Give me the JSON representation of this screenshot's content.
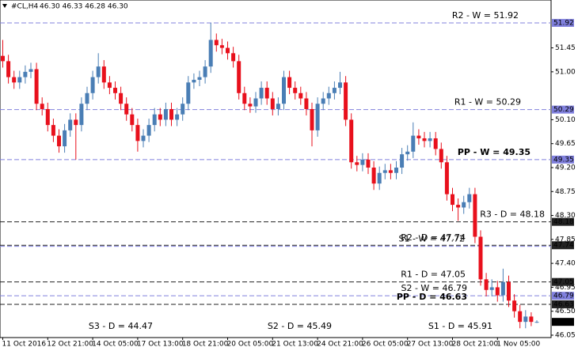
{
  "chart_data": {
    "type": "candlestick",
    "symbol": "#CL,H4",
    "ohlc": "46.30 46.33 46.28 46.30",
    "up_color": "#4a7eb5",
    "down_color": "#e8101c",
    "ylim": [
      46.02,
      52.35
    ],
    "yticks": [
      {
        "value": 51.45,
        "label": "51.45"
      },
      {
        "value": 51.0,
        "label": "51.00"
      },
      {
        "value": 50.1,
        "label": "50.10"
      },
      {
        "value": 49.65,
        "label": "49.65"
      },
      {
        "value": 49.2,
        "label": "49.20"
      },
      {
        "value": 48.75,
        "label": "48.75"
      },
      {
        "value": 48.3,
        "label": "48.30"
      },
      {
        "value": 47.85,
        "label": "47.85"
      },
      {
        "value": 47.4,
        "label": "47.40"
      },
      {
        "value": 46.95,
        "label": "46.95"
      },
      {
        "value": 46.5,
        "label": "46.50"
      },
      {
        "value": 46.05,
        "label": "46.05"
      }
    ],
    "last": {
      "value": 46.3,
      "label": "46.30"
    },
    "categories": [
      "11 Oct 2016",
      null,
      null,
      null,
      null,
      null,
      null,
      null,
      "12 Oct 21:00",
      null,
      null,
      null,
      null,
      null,
      null,
      null,
      "14 Oct 05:00",
      null,
      null,
      null,
      null,
      null,
      null,
      null,
      "17 Oct 13:00",
      null,
      null,
      null,
      null,
      null,
      null,
      null,
      "18 Oct 21:00",
      null,
      null,
      null,
      null,
      null,
      null,
      null,
      "20 Oct 05:00",
      null,
      null,
      null,
      null,
      null,
      null,
      null,
      "21 Oct 13:00",
      null,
      null,
      null,
      null,
      null,
      null,
      null,
      "24 Oct 21:00",
      null,
      null,
      null,
      null,
      null,
      null,
      null,
      "26 Oct 05:00",
      null,
      null,
      null,
      null,
      null,
      null,
      null,
      "27 Oct 13:00",
      null,
      null,
      null,
      null,
      null,
      null,
      null,
      "28 Oct 21:00",
      null,
      null,
      null,
      null,
      null,
      null,
      null,
      "1 Nov 05:00",
      null,
      null,
      null,
      null,
      null,
      null,
      null
    ],
    "open": [
      51.3,
      51.2,
      50.9,
      50.8,
      50.9,
      51.0,
      51.05,
      50.4,
      50.3,
      50.0,
      49.8,
      49.6,
      49.9,
      50.1,
      50.0,
      50.4,
      50.6,
      50.9,
      51.1,
      50.8,
      50.7,
      50.6,
      50.4,
      50.2,
      50.0,
      49.7,
      49.8,
      50.0,
      50.2,
      50.1,
      50.3,
      50.1,
      50.2,
      50.4,
      50.8,
      50.85,
      50.9,
      51.1,
      51.6,
      51.5,
      51.45,
      51.35,
      51.2,
      50.6,
      50.4,
      50.35,
      50.5,
      50.7,
      50.5,
      50.3,
      50.4,
      50.9,
      50.7,
      50.6,
      50.5,
      50.3,
      49.9,
      50.4,
      50.5,
      50.6,
      50.7,
      50.8,
      50.1,
      49.3,
      49.25,
      49.35,
      49.2,
      48.9,
      49.1,
      49.15,
      49.1,
      49.2,
      49.45,
      49.5,
      49.8,
      49.75,
      49.7,
      49.75,
      49.55,
      49.3,
      48.7,
      48.5,
      48.45,
      48.55,
      48.7,
      47.9,
      47.1,
      46.9,
      46.95,
      46.8,
      47.05,
      46.7,
      46.5,
      46.3,
      46.4,
      46.3
    ],
    "high": [
      51.6,
      51.32,
      51.02,
      51.02,
      51.12,
      51.17,
      51.17,
      50.52,
      50.42,
      50.12,
      49.92,
      50.02,
      50.22,
      50.22,
      50.52,
      50.72,
      51.02,
      51.35,
      51.22,
      50.92,
      50.82,
      50.72,
      50.52,
      50.32,
      50.12,
      49.92,
      50.12,
      50.32,
      50.32,
      50.42,
      50.42,
      50.32,
      50.52,
      50.92,
      50.97,
      51.02,
      51.22,
      51.92,
      51.72,
      51.62,
      51.57,
      51.47,
      51.32,
      50.72,
      50.52,
      50.62,
      50.82,
      50.82,
      50.62,
      50.52,
      51.02,
      51.02,
      50.82,
      50.72,
      50.62,
      50.42,
      50.52,
      50.62,
      50.72,
      50.82,
      51.0,
      50.92,
      50.22,
      49.42,
      49.47,
      49.47,
      49.32,
      49.22,
      49.27,
      49.27,
      49.32,
      49.57,
      49.62,
      50.05,
      49.92,
      49.87,
      49.87,
      49.87,
      49.67,
      49.42,
      48.82,
      48.62,
      48.67,
      48.82,
      48.82,
      48.02,
      47.22,
      47.1,
      47.07,
      47.3,
      47.17,
      46.82,
      46.62,
      46.52,
      46.48,
      46.33
    ],
    "low": [
      51.08,
      50.78,
      50.68,
      50.68,
      50.78,
      50.88,
      50.28,
      50.18,
      49.88,
      49.68,
      49.48,
      49.48,
      49.78,
      49.35,
      49.88,
      50.28,
      50.48,
      50.78,
      50.68,
      50.58,
      50.48,
      50.28,
      50.08,
      49.88,
      49.5,
      49.58,
      49.68,
      49.88,
      49.98,
      49.98,
      49.98,
      49.98,
      50.08,
      50.28,
      50.68,
      50.73,
      50.78,
      50.98,
      51.38,
      51.33,
      51.23,
      51.08,
      50.48,
      50.28,
      50.23,
      50.23,
      50.38,
      50.38,
      50.18,
      50.18,
      50.28,
      50.58,
      50.48,
      50.38,
      50.18,
      49.6,
      49.78,
      50.28,
      50.38,
      50.48,
      50.58,
      49.98,
      49.18,
      49.13,
      49.13,
      49.08,
      48.78,
      48.78,
      48.98,
      48.98,
      48.98,
      49.08,
      49.33,
      49.38,
      49.63,
      49.58,
      49.58,
      49.43,
      49.18,
      48.58,
      48.38,
      48.2,
      48.33,
      48.43,
      47.78,
      46.98,
      46.78,
      46.78,
      46.68,
      46.68,
      46.58,
      46.38,
      46.18,
      46.18,
      46.22,
      46.28
    ],
    "close": [
      51.2,
      50.9,
      50.8,
      50.9,
      51.0,
      51.05,
      50.4,
      50.3,
      50.0,
      49.8,
      49.6,
      49.9,
      50.1,
      50.0,
      50.4,
      50.6,
      50.9,
      51.1,
      50.8,
      50.7,
      50.6,
      50.4,
      50.2,
      50.0,
      49.7,
      49.8,
      50.0,
      50.2,
      50.1,
      50.3,
      50.1,
      50.2,
      50.4,
      50.8,
      50.85,
      50.9,
      51.1,
      51.6,
      51.5,
      51.45,
      51.35,
      51.2,
      50.6,
      50.4,
      50.35,
      50.5,
      50.7,
      50.5,
      50.3,
      50.4,
      50.9,
      50.7,
      50.6,
      50.5,
      50.3,
      49.9,
      50.4,
      50.5,
      50.6,
      50.7,
      50.8,
      50.1,
      49.3,
      49.25,
      49.35,
      49.2,
      48.9,
      49.1,
      49.15,
      49.1,
      49.2,
      49.45,
      49.5,
      49.8,
      49.75,
      49.7,
      49.75,
      49.55,
      49.3,
      48.7,
      48.5,
      48.45,
      48.55,
      48.7,
      47.9,
      47.1,
      46.9,
      46.95,
      46.8,
      47.05,
      46.7,
      46.5,
      46.3,
      46.4,
      46.3,
      46.3
    ],
    "levels": [
      {
        "label": "R2 - W = 51.92",
        "value": 51.92,
        "color": "#8080dd",
        "line_color": "#8080dd",
        "bold": false,
        "box": true
      },
      {
        "label": "R1 - W = 50.29",
        "value": 50.29,
        "color": "#8080dd",
        "line_color": "#8080dd",
        "bold": false,
        "box": true
      },
      {
        "label": "PP - W = 49.35",
        "value": 49.35,
        "color": "#5a4fd6",
        "line_color": "#8080dd",
        "bold": true,
        "box": true
      },
      {
        "label": "R3 - D = 48.18",
        "value": 48.18,
        "color": "#e0202a",
        "line_color": "#222222",
        "bold": false,
        "box": true
      },
      {
        "label": "R2 - D = 47.74",
        "value": 47.74,
        "color": "#e0202a",
        "line_color": "#222222",
        "bold": false,
        "box": true
      },
      {
        "label": "S1 - W = 47.72",
        "value": 47.72,
        "color": "#8080dd",
        "line_color": "#8080dd",
        "bold": false,
        "box": false
      },
      {
        "label": "R1 - D = 47.05",
        "value": 47.05,
        "color": "#e0202a",
        "line_color": "#222222",
        "bold": false,
        "box": true
      },
      {
        "label": "S2 - W = 46.79",
        "value": 46.79,
        "color": "#8080dd",
        "line_color": "#8080dd",
        "bold": false,
        "box": true
      },
      {
        "label": "PP - D = 46.63",
        "value": 46.63,
        "color": "#2f4fd0",
        "line_color": "#222222",
        "bold": true,
        "box": true
      },
      {
        "label": "S1 - D = 45.91",
        "value": 45.91,
        "color": "#e0202a",
        "line_color": "#222222",
        "bold": false,
        "box": false
      },
      {
        "label": "S2 - D = 45.49",
        "value": 45.49,
        "color": "#e0202a",
        "line_color": "#222222",
        "bold": false,
        "box": false
      },
      {
        "label": "S3 - D = 44.47",
        "value": 44.47,
        "color": "#e0202a",
        "line_color": "#222222",
        "bold": false,
        "box": false
      }
    ]
  }
}
